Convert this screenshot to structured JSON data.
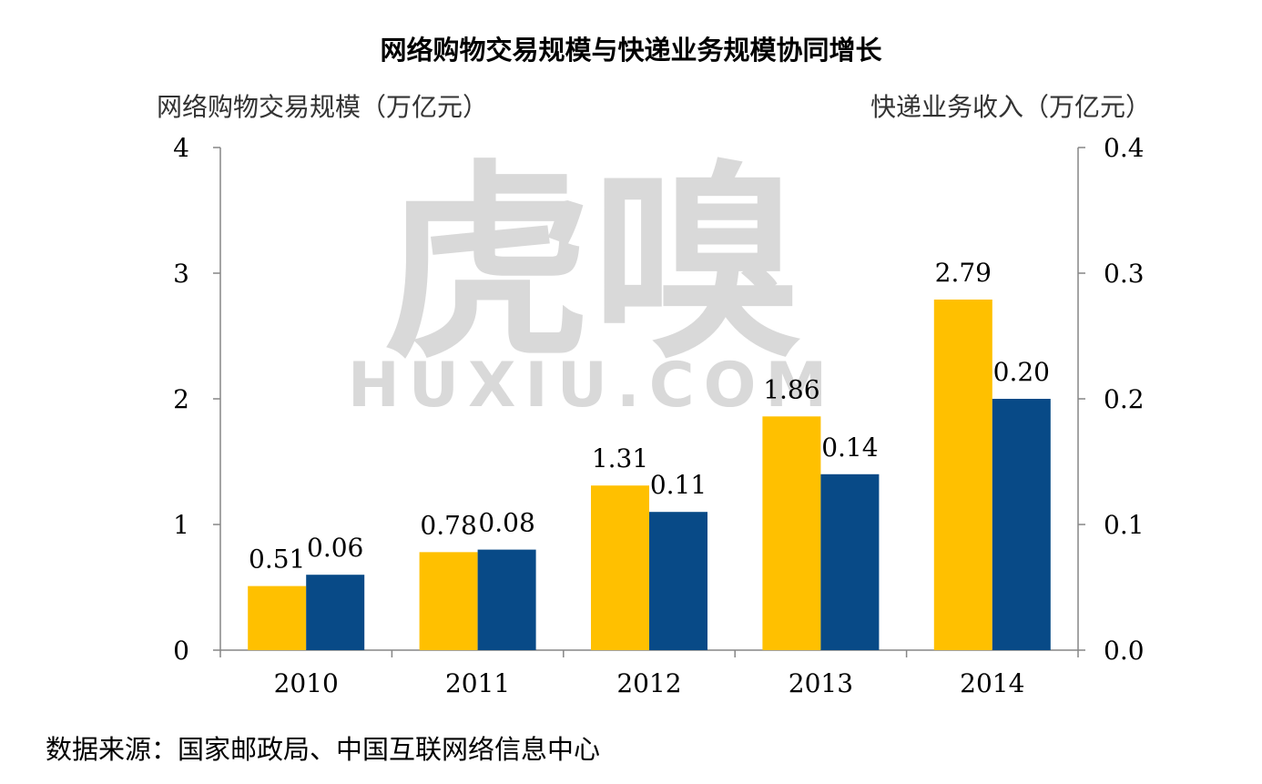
{
  "colors": {
    "online_shopping": "#FFC000",
    "express_revenue": "#084A87",
    "axis": "#868686",
    "text": "#000000",
    "watermark": "#D9D9D9"
  },
  "watermark": {
    "main": "虎嗅",
    "sub": "HUXIU.COM"
  },
  "source_note": "数据来源：国家邮政局、中国互联网络信息中心",
  "chart_data": {
    "type": "bar",
    "title": "网络购物交易规模与快递业务规模协同增长",
    "categories": [
      "2010",
      "2011",
      "2012",
      "2013",
      "2014"
    ],
    "ylabel": "网络购物交易规模（万亿元）",
    "ylabel_right": "快递业务收入（万亿元）",
    "ylim": [
      0,
      4
    ],
    "ylim_right": [
      0,
      0.4
    ],
    "yticks": [
      "0",
      "1",
      "2",
      "3",
      "4"
    ],
    "yticks_right": [
      "0.0",
      "0.1",
      "0.2",
      "0.3",
      "0.4"
    ],
    "grid": false,
    "legend": "none",
    "series": [
      {
        "axis": "left",
        "color": "#FFC000",
        "values": [
          0.51,
          0.78,
          1.31,
          1.86,
          2.79
        ],
        "labels": [
          "0.51",
          "0.78",
          "1.31",
          "1.86",
          "2.79"
        ]
      },
      {
        "axis": "right",
        "color": "#084A87",
        "values": [
          0.06,
          0.08,
          0.11,
          0.14,
          0.2
        ],
        "labels": [
          "0.06",
          "0.08",
          "0.11",
          "0.14",
          "0.20"
        ]
      }
    ]
  }
}
